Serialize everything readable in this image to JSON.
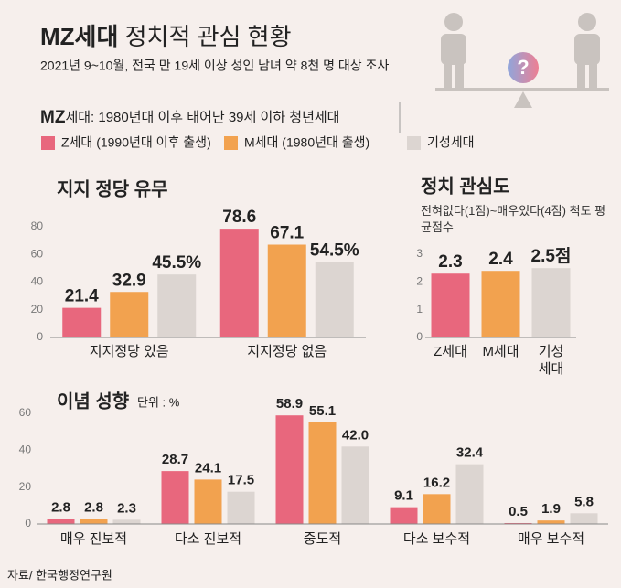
{
  "header": {
    "title_bold": "MZ세대",
    "title_rest": "정치적 관심 현황",
    "subtitle": "2021년 9~10월, 전국 만 19세 이상 성인 남녀 약 8천 명 대상 조사",
    "icon_text": "?"
  },
  "legend": {
    "note_bold": "MZ",
    "note_rest": "세대: 1980년대 이후 태어난 39세 이하 청년세대"
  },
  "source": "자료/ 한국행정연구원",
  "chart_data": [
    {
      "type": "bar",
      "title": "지지 정당 유무",
      "categories": [
        "지지정당 있음",
        "지지정당 없음"
      ],
      "series": [
        {
          "name": "Z세대 (1990년대 이후 출생)",
          "color": "#e8677d",
          "values": [
            21.4,
            78.6
          ]
        },
        {
          "name": "M세대 (1980년대 출생)",
          "color": "#f2a24f",
          "values": [
            32.9,
            67.1
          ]
        },
        {
          "name": "기성세대",
          "color": "#dcd5d1",
          "values": [
            45.5,
            54.5
          ],
          "value_labels": [
            "45.5%",
            "54.5%"
          ]
        }
      ],
      "ylim": [
        0,
        80
      ],
      "yticks": [
        0,
        20,
        40,
        60,
        80
      ],
      "grid": false
    },
    {
      "type": "bar",
      "title": "정치 관심도",
      "subtitle": "전혀없다(1점)~매우있다(4점) 척도 평균점수",
      "categories": [
        "Z세대",
        "M세대",
        "기성\n세대"
      ],
      "values": [
        2.3,
        2.4,
        2.5
      ],
      "value_labels": [
        "2.3",
        "2.4",
        "2.5점"
      ],
      "colors": [
        "#e8677d",
        "#f2a24f",
        "#dcd5d1"
      ],
      "ylim": [
        0,
        3
      ],
      "yticks": [
        0,
        1,
        2,
        3
      ],
      "grid": false
    },
    {
      "type": "bar",
      "title": "이념 성향",
      "unit": "단위 : %",
      "categories": [
        "매우 진보적",
        "다소 진보적",
        "중도적",
        "다소 보수적",
        "매우 보수적"
      ],
      "series": [
        {
          "color": "#e8677d",
          "values": [
            2.8,
            28.7,
            58.9,
            9.1,
            0.5
          ]
        },
        {
          "color": "#f2a24f",
          "values": [
            2.8,
            24.1,
            55.1,
            16.2,
            1.9
          ]
        },
        {
          "color": "#dcd5d1",
          "values": [
            2.3,
            17.5,
            42.0,
            32.4,
            5.8
          ],
          "value_labels": [
            "2.3",
            "17.5",
            "42.0",
            "32.4",
            "5.8"
          ]
        }
      ],
      "ylim": [
        0,
        60
      ],
      "yticks": [
        0,
        20,
        40,
        60
      ],
      "grid": false
    }
  ]
}
